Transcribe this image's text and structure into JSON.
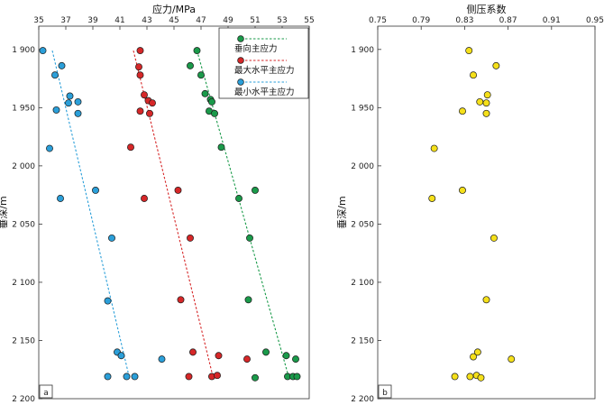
{
  "chart_data": [
    {
      "type": "scatter",
      "panel_label": "a",
      "title": "应力/MPa",
      "ylabel": "垂深/m",
      "xlim": [
        35,
        55
      ],
      "ylim": [
        1880,
        2200
      ],
      "x_ticks": [
        "35",
        "37",
        "39",
        "41",
        "43",
        "45",
        "47",
        "49",
        "51",
        "53",
        "55"
      ],
      "y_ticks": [
        "1 900",
        "1 950",
        "2 000",
        "2 050",
        "2 100",
        "2 150",
        "2 200"
      ],
      "legend_position": "top-right",
      "series": [
        {
          "name": "垂向主应力",
          "color": "#1a9a4a",
          "points": [
            [
              46.7,
              1901
            ],
            [
              46.2,
              1914
            ],
            [
              47.0,
              1922
            ],
            [
              47.3,
              1938
            ],
            [
              47.7,
              1943
            ],
            [
              47.8,
              1945
            ],
            [
              47.6,
              1953
            ],
            [
              48.0,
              1955
            ],
            [
              48.5,
              1984
            ],
            [
              51.0,
              2021
            ],
            [
              49.8,
              2028
            ],
            [
              50.6,
              2062
            ],
            [
              50.5,
              2115
            ],
            [
              51.8,
              2160
            ],
            [
              53.3,
              2163
            ],
            [
              54.0,
              2166
            ],
            [
              51.0,
              2182
            ],
            [
              53.4,
              2181
            ],
            [
              53.8,
              2181
            ],
            [
              54.1,
              2181
            ]
          ],
          "trend": [
            [
              46.7,
              1901
            ],
            [
              53.5,
              2182
            ]
          ]
        },
        {
          "name": "最大水平主应力",
          "color": "#d62728",
          "points": [
            [
              42.5,
              1901
            ],
            [
              42.4,
              1915
            ],
            [
              42.5,
              1922
            ],
            [
              42.8,
              1939
            ],
            [
              43.1,
              1944
            ],
            [
              43.4,
              1946
            ],
            [
              42.5,
              1953
            ],
            [
              43.2,
              1955
            ],
            [
              41.8,
              1984
            ],
            [
              45.3,
              2021
            ],
            [
              42.8,
              2028
            ],
            [
              46.2,
              2062
            ],
            [
              45.5,
              2115
            ],
            [
              46.4,
              2160
            ],
            [
              48.3,
              2163
            ],
            [
              50.4,
              2166
            ],
            [
              46.1,
              2181
            ],
            [
              47.8,
              2181
            ],
            [
              48.2,
              2180
            ]
          ],
          "trend": [
            [
              42.0,
              1901
            ],
            [
              47.9,
              2182
            ]
          ]
        },
        {
          "name": "最小水平主应力",
          "color": "#2b9fd9",
          "points": [
            [
              35.3,
              1901
            ],
            [
              36.7,
              1914
            ],
            [
              36.2,
              1922
            ],
            [
              37.3,
              1940
            ],
            [
              37.2,
              1946
            ],
            [
              37.9,
              1945
            ],
            [
              36.3,
              1952
            ],
            [
              37.9,
              1955
            ],
            [
              35.8,
              1985
            ],
            [
              39.2,
              2021
            ],
            [
              36.6,
              2028
            ],
            [
              40.4,
              2062
            ],
            [
              40.1,
              2116
            ],
            [
              40.8,
              2160
            ],
            [
              41.1,
              2163
            ],
            [
              44.1,
              2166
            ],
            [
              40.1,
              2181
            ],
            [
              41.5,
              2181
            ],
            [
              42.1,
              2181
            ]
          ],
          "trend": [
            [
              36.0,
              1901
            ],
            [
              41.7,
              2182
            ]
          ]
        }
      ]
    },
    {
      "type": "scatter",
      "panel_label": "b",
      "title": "侧压系数",
      "ylabel": "垂深/m",
      "xlim": [
        0.75,
        0.95
      ],
      "ylim": [
        1880,
        2200
      ],
      "x_ticks": [
        "0.75",
        "0.79",
        "0.83",
        "0.87",
        "0.91",
        "0.95"
      ],
      "y_ticks": [
        "1 900",
        "1 950",
        "2 000",
        "2 050",
        "2 100",
        "2 150",
        "2 200"
      ],
      "series": [
        {
          "name": "",
          "color": "#f5e01a",
          "points": [
            [
              0.834,
              1901
            ],
            [
              0.859,
              1914
            ],
            [
              0.838,
              1922
            ],
            [
              0.851,
              1939
            ],
            [
              0.844,
              1945
            ],
            [
              0.85,
              1946
            ],
            [
              0.828,
              1953
            ],
            [
              0.85,
              1955
            ],
            [
              0.802,
              1985
            ],
            [
              0.828,
              2021
            ],
            [
              0.8,
              2028
            ],
            [
              0.857,
              2062
            ],
            [
              0.85,
              2115
            ],
            [
              0.842,
              2160
            ],
            [
              0.838,
              2164
            ],
            [
              0.873,
              2166
            ],
            [
              0.821,
              2181
            ],
            [
              0.835,
              2181
            ],
            [
              0.841,
              2180
            ],
            [
              0.845,
              2182
            ]
          ]
        }
      ]
    }
  ]
}
